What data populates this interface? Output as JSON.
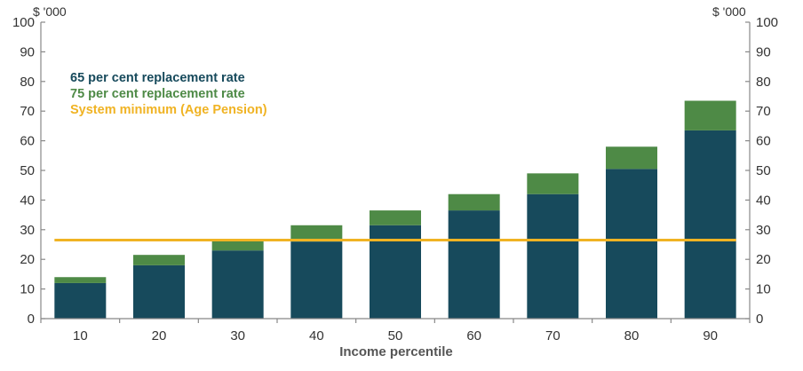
{
  "chart_data": {
    "type": "bar",
    "stacked": true,
    "categories": [
      "10",
      "20",
      "30",
      "40",
      "50",
      "60",
      "70",
      "80",
      "90"
    ],
    "series": [
      {
        "name": "65 per cent replacement rate",
        "color": "#174a5c",
        "values": [
          12,
          18,
          23,
          26,
          31.5,
          36.5,
          42,
          50.5,
          63.5
        ]
      },
      {
        "name": "75 per cent replacement rate",
        "color": "#4e8a46",
        "values": [
          2,
          3.5,
          3.5,
          5.5,
          5,
          5.5,
          7,
          7.5,
          10
        ]
      }
    ],
    "reference_line": {
      "name": "System minimum (Age Pension)",
      "color": "#f0b323",
      "value": 26.5
    },
    "ylim": [
      0,
      100
    ],
    "yticks": [
      0,
      10,
      20,
      30,
      40,
      50,
      60,
      70,
      80,
      90,
      100
    ],
    "ytick_labels": [
      "0",
      "10",
      "20",
      "30",
      "40",
      "50",
      "60",
      "70",
      "80",
      "90",
      "100"
    ],
    "y_unit_left": "$ '000",
    "y_unit_right": "$ '000",
    "xlabel": "Income percentile",
    "legend_position": "top-left"
  }
}
